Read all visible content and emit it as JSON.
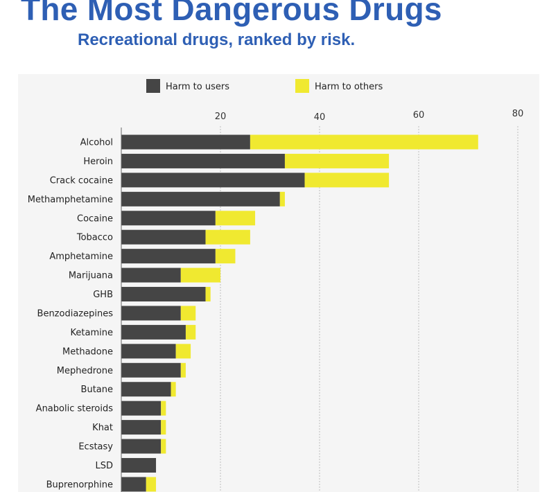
{
  "header": {
    "title": "The Most Dangerous Drugs",
    "subtitle": "Recreational drugs, ranked by risk."
  },
  "chart_data": {
    "type": "bar",
    "orientation": "horizontal",
    "stacked": true,
    "title": "The Most Dangerous Drugs",
    "subtitle": "Recreational drugs, ranked by risk.",
    "xlabel": "",
    "ylabel": "",
    "xlim": [
      0,
      80
    ],
    "xticks": [
      "20",
      "40",
      "60",
      "80"
    ],
    "grid": true,
    "legend_position": "top",
    "categories": [
      "Alcohol",
      "Heroin",
      "Crack cocaine",
      "Methamphetamine",
      "Cocaine",
      "Tobacco",
      "Amphetamine",
      "Marijuana",
      "GHB",
      "Benzodiazepines",
      "Ketamine",
      "Methadone",
      "Mephedrone",
      "Butane",
      "Anabolic steroids",
      "Khat",
      "Ecstasy",
      "LSD",
      "Buprenorphine"
    ],
    "series": [
      {
        "name": "Harm to users",
        "color": "#454545",
        "values": [
          26,
          33,
          37,
          32,
          19,
          17,
          19,
          12,
          17,
          12,
          13,
          11,
          12,
          10,
          8,
          8,
          8,
          7,
          5
        ]
      },
      {
        "name": "Harm to others",
        "color": "#f0e930",
        "values": [
          46,
          21,
          17,
          1,
          8,
          9,
          4,
          8,
          1,
          3,
          2,
          3,
          1,
          1,
          1,
          1,
          1,
          0,
          2
        ]
      }
    ]
  }
}
